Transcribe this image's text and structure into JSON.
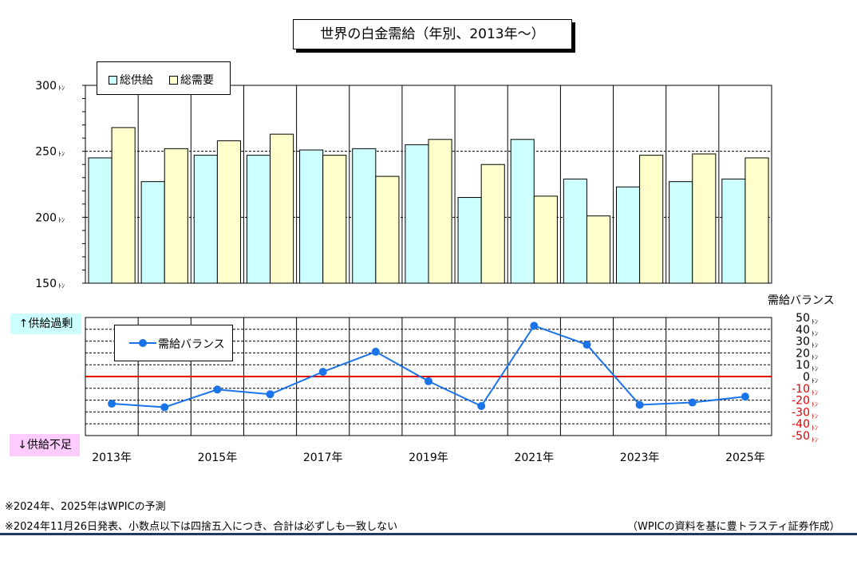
{
  "title": "世界の白金需給（年別、2013年〜）",
  "legend_top": {
    "supply": "総供給",
    "demand": "総需要"
  },
  "legend_bottom": {
    "balance": "需給バランス"
  },
  "right_axis_title": "需給バランス",
  "tags": {
    "over": "↑供給過剰",
    "under": "↓供給不足"
  },
  "notes": {
    "note1": "※2024年、2025年はWPICの予測",
    "note2": "※2024年11月26日発表、小数点以下は四捨五入につき、合計は必ずしも一致しない",
    "source": "（WPICの資料を基に豊トラスティ証券作成）"
  },
  "colors": {
    "supply": "#ccffff",
    "demand": "#ffffcc",
    "balance_line": "#1a73e8",
    "zero_line": "#e00000",
    "negative_tick_text": "#e00000"
  },
  "chart_data": [
    {
      "type": "bar",
      "categories": [
        "2013年",
        "2014年",
        "2015年",
        "2016年",
        "2017年",
        "2018年",
        "2019年",
        "2020年",
        "2021年",
        "2022年",
        "2023年",
        "2024年",
        "2025年"
      ],
      "x_tick_labels": [
        "2013年",
        "",
        "2015年",
        "",
        "2017年",
        "",
        "2019年",
        "",
        "2021年",
        "",
        "2023年",
        "",
        "2025年"
      ],
      "series": [
        {
          "name": "総供給",
          "values": [
            245,
            227,
            247,
            247,
            251,
            252,
            255,
            215,
            259,
            229,
            223,
            227,
            229
          ]
        },
        {
          "name": "総需要",
          "values": [
            268,
            252,
            258,
            263,
            247,
            231,
            259,
            240,
            216,
            201,
            247,
            248,
            245
          ]
        }
      ],
      "ylim": [
        150,
        300
      ],
      "y_ticks": [
        150,
        200,
        250,
        300
      ],
      "y_unit": "ﾄﾝ",
      "grid": true,
      "legend_position": "top-left"
    },
    {
      "type": "line",
      "x": [
        "2013年",
        "2014年",
        "2015年",
        "2016年",
        "2017年",
        "2018年",
        "2019年",
        "2020年",
        "2021年",
        "2022年",
        "2023年",
        "2024年",
        "2025年"
      ],
      "series": [
        {
          "name": "需給バランス",
          "values": [
            -23,
            -26,
            -11,
            -15,
            4,
            21,
            -4,
            -25,
            43,
            27,
            -24,
            -22,
            -17
          ]
        }
      ],
      "ylim": [
        -50,
        50
      ],
      "y_ticks": [
        50,
        40,
        30,
        20,
        10,
        0,
        -10,
        -20,
        -30,
        -40,
        -50
      ],
      "y_unit": "ﾄﾝ",
      "ylabel": "需給バランス",
      "grid": true,
      "legend_position": "top-left"
    }
  ]
}
